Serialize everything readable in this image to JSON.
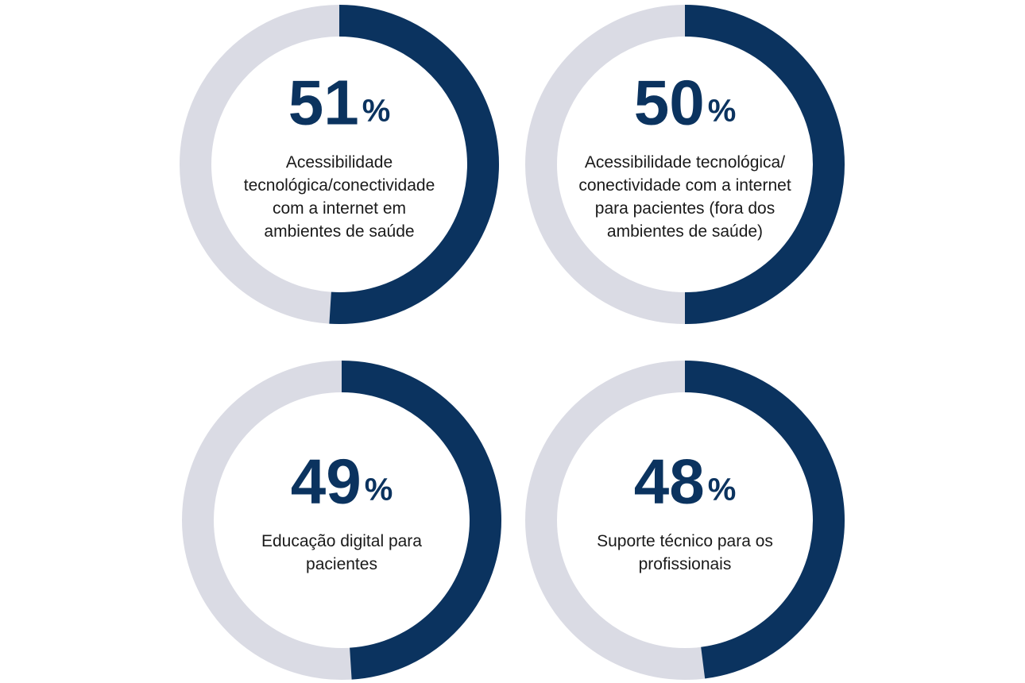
{
  "chart_data": [
    {
      "type": "donut",
      "value": 51,
      "unit": "%",
      "ylim": [
        0,
        100
      ],
      "color": "#0b335f",
      "track_color": "#dadbe4",
      "label": [
        "Acessibilidade",
        "tecnológica/conectividade",
        "com a internet em",
        "ambientes de saúde"
      ]
    },
    {
      "type": "donut",
      "value": 50,
      "unit": "%",
      "ylim": [
        0,
        100
      ],
      "color": "#0b335f",
      "track_color": "#dadbe4",
      "label": [
        "Acessibilidade tecnológica/",
        "conectividade com a internet",
        "para pacientes (fora dos",
        "ambientes de saúde)"
      ]
    },
    {
      "type": "donut",
      "value": 49,
      "unit": "%",
      "ylim": [
        0,
        100
      ],
      "color": "#0b335f",
      "track_color": "#dadbe4",
      "label": [
        "Educação digital para",
        "pacientes"
      ]
    },
    {
      "type": "donut",
      "value": 48,
      "unit": "%",
      "ylim": [
        0,
        100
      ],
      "color": "#0b335f",
      "track_color": "#dadbe4",
      "label": [
        "Suporte técnico para os",
        "profissionais"
      ]
    }
  ]
}
